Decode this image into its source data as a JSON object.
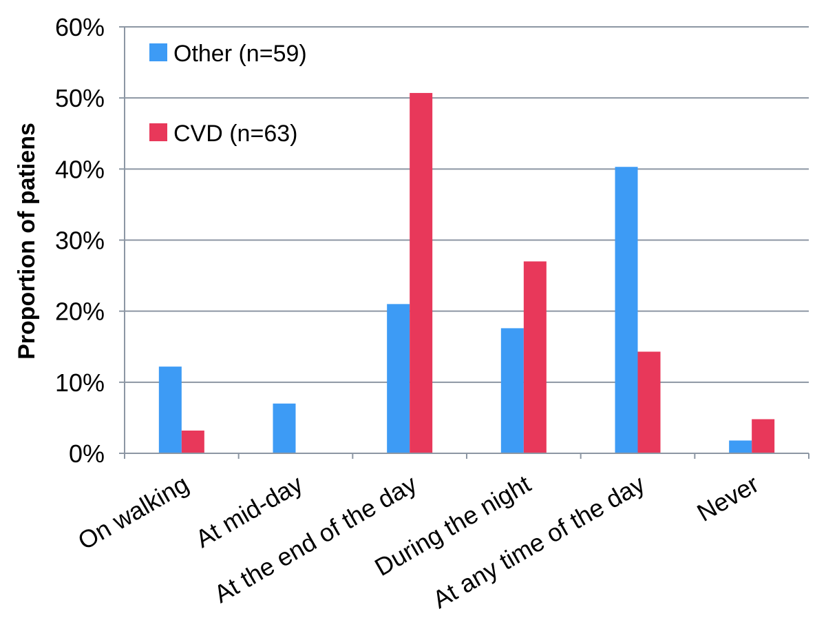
{
  "chart_data": {
    "type": "bar",
    "title": "",
    "xlabel": "",
    "ylabel": "Proportion of patiens",
    "ylim": [
      0,
      60
    ],
    "y_ticks": [
      0,
      10,
      20,
      30,
      40,
      50,
      60
    ],
    "y_tick_labels": [
      "0%",
      "10%",
      "20%",
      "30%",
      "40%",
      "50%",
      "60%"
    ],
    "grid": true,
    "legend_position": "top-left",
    "categories": [
      "On walking",
      "At mid-day",
      "At the end of the day",
      "During the night",
      "At any time of the day",
      "Never"
    ],
    "series": [
      {
        "name": "Other (n=59)",
        "color": "#3d9bf5",
        "values": [
          12.2,
          7.0,
          21.0,
          17.6,
          40.3,
          1.8
        ]
      },
      {
        "name": "CVD (n=63)",
        "color": "#e8385a",
        "values": [
          3.2,
          0,
          50.7,
          27.0,
          14.3,
          4.8
        ]
      }
    ]
  }
}
